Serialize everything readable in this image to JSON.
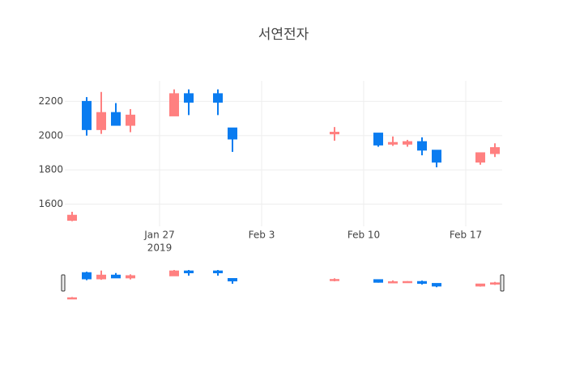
{
  "chart_data": {
    "type": "candlestick",
    "title": "서연전자",
    "x": [
      "2019-01-21",
      "2019-01-22",
      "2019-01-23",
      "2019-01-24",
      "2019-01-25",
      "2019-01-28",
      "2019-01-29",
      "2019-01-31",
      "2019-02-01",
      "2019-02-08",
      "2019-02-11",
      "2019-02-12",
      "2019-02-13",
      "2019-02-14",
      "2019-02-15",
      "2019-02-18",
      "2019-02-19"
    ],
    "open": [
      1505,
      2200,
      2035,
      2135,
      2060,
      2115,
      2245,
      2245,
      2045,
      2010,
      2015,
      1950,
      1950,
      1965,
      1915,
      1845,
      1895
    ],
    "high": [
      1555,
      2225,
      2255,
      2190,
      2155,
      2270,
      2270,
      2270,
      2045,
      2050,
      2015,
      1995,
      1975,
      1990,
      1915,
      1900,
      1955
    ],
    "low": [
      1500,
      2000,
      2010,
      2060,
      2020,
      2115,
      2120,
      2120,
      1905,
      1970,
      1935,
      1940,
      1935,
      1885,
      1815,
      1830,
      1875
    ],
    "close": [
      1535,
      2035,
      2135,
      2060,
      2120,
      2245,
      2195,
      2195,
      1980,
      2020,
      1945,
      1960,
      1965,
      1915,
      1845,
      1900,
      1930
    ],
    "increasing_color": "#ff8080",
    "decreasing_color": "#0a7cf0",
    "xlim": [
      "2019-01-20T12:00Z",
      "2019-02-19T12:00Z"
    ],
    "xticks": [
      {
        "value": "2019-01-27",
        "label": "Jan 27",
        "year": "2019"
      },
      {
        "value": "2019-02-03",
        "label": "Feb 3"
      },
      {
        "value": "2019-02-10",
        "label": "Feb 10"
      },
      {
        "value": "2019-02-17",
        "label": "Feb 17"
      }
    ],
    "ylim": [
      1470,
      2320
    ],
    "yticks": [
      1600,
      1800,
      2000,
      2200
    ],
    "grid": true,
    "rangeslider": true
  }
}
